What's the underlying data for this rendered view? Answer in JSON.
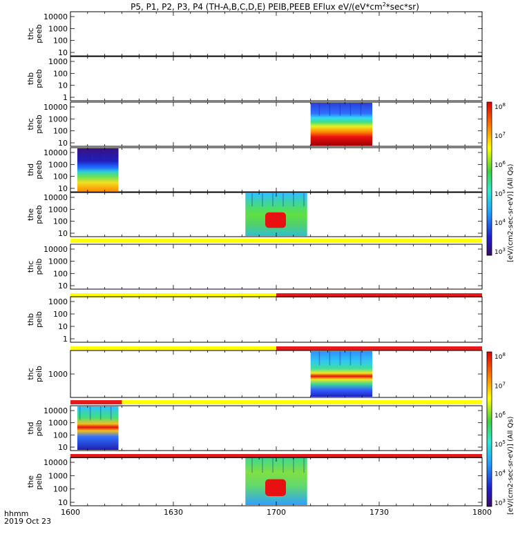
{
  "title": "P5, P1, P2, P3, P4 (TH-A,B,C,D,E) PEIB,PEEB EFlux eV/(eV*cm^2*sec*sr)",
  "title_parts": {
    "main": "P5, P1, P2, P3, P4 (TH-A,B,C,D,E) PEIB,PEEB EFlux eV/(eV*cm",
    "sup": "2",
    "tail": "*sec*sr)"
  },
  "time_axis": {
    "label_line1": "hhmm",
    "label_line2": "2019 Oct 23",
    "ticks": [
      "1600",
      "1630",
      "1700",
      "1730",
      "1800"
    ]
  },
  "colorbar_labels": {
    "electron": "[eV/(cm2-sec-sr-eV)] (All Qs)",
    "ion": "[eV/(cm2-sec-sr-eV)] (All Qs)"
  },
  "colorbar_ticks": [
    "10",
    "10",
    "10",
    "10",
    "10",
    "10"
  ],
  "colorbar_exponents": [
    "3",
    "4",
    "5",
    "6",
    "7",
    "8"
  ],
  "colors": {
    "red": "#e41a1c",
    "yellow": "#ffff00",
    "blue": "#2020d0",
    "green": "#33cc33",
    "cyan": "#30c8ff"
  },
  "chart_data": [
    {
      "type": "heatmap",
      "probe": "thc",
      "product": "peeb",
      "ylabel": [
        "thc",
        "peeb"
      ],
      "yticks": [
        "10000",
        "1000",
        "100",
        "10"
      ],
      "data_window": null
    },
    {
      "type": "heatmap",
      "probe": "thb",
      "product": "peeb",
      "ylabel": [
        "thb",
        "peeb"
      ],
      "yticks": [
        "1000",
        "100",
        "10",
        "1"
      ],
      "data_window": null
    },
    {
      "type": "heatmap",
      "probe": "thc",
      "product": "peeb",
      "ylabel": [
        "thc",
        "peeb"
      ],
      "yticks": [
        "10000",
        "1000",
        "100",
        "10"
      ],
      "data_window": [
        "17:10",
        "17:28"
      ]
    },
    {
      "type": "heatmap",
      "probe": "thd",
      "product": "peeb",
      "ylabel": [
        "thd",
        "peeb"
      ],
      "yticks": [
        "10000",
        "1000",
        "100",
        "10"
      ],
      "data_window": [
        "16:02",
        "16:14"
      ]
    },
    {
      "type": "heatmap",
      "probe": "the",
      "product": "peeb",
      "ylabel": [
        "the",
        "peeb"
      ],
      "yticks": [
        "10000",
        "1000",
        "100",
        "10"
      ],
      "data_window": [
        "16:51",
        "17:09"
      ]
    },
    {
      "type": "heatmap",
      "probe": "thc",
      "product": "peib",
      "ylabel": [
        "thc",
        "peib"
      ],
      "yticks": [
        "10000",
        "1000",
        "100",
        "10"
      ],
      "data_window": null,
      "flag_bar": [
        {
          "from": "16:00",
          "to": "18:00",
          "color": "yellow"
        }
      ]
    },
    {
      "type": "heatmap",
      "probe": "thb",
      "product": "peib",
      "ylabel": [
        "thb",
        "peib"
      ],
      "yticks": [
        "1000",
        "100",
        "10",
        "1"
      ],
      "data_window": null,
      "flag_bar": [
        {
          "from": "16:00",
          "to": "17:00",
          "color": "yellow"
        },
        {
          "from": "17:00",
          "to": "18:00",
          "color": "red"
        }
      ]
    },
    {
      "type": "heatmap",
      "probe": "thc",
      "product": "peib",
      "ylabel": [
        "thc",
        "peib"
      ],
      "yticks": [
        "1000"
      ],
      "data_window": [
        "17:10",
        "17:28"
      ],
      "flag_bar": [
        {
          "from": "16:00",
          "to": "17:00",
          "color": "yellow"
        },
        {
          "from": "17:00",
          "to": "18:00",
          "color": "red"
        }
      ]
    },
    {
      "type": "heatmap",
      "probe": "thd",
      "product": "peib",
      "ylabel": [
        "thd",
        "peib"
      ],
      "yticks": [
        "10000",
        "1000",
        "100",
        "10"
      ],
      "data_window": [
        "16:02",
        "16:14"
      ],
      "flag_bar": [
        {
          "from": "16:00",
          "to": "16:15",
          "color": "red"
        },
        {
          "from": "16:15",
          "to": "18:00",
          "color": "yellow"
        }
      ]
    },
    {
      "type": "heatmap",
      "probe": "the",
      "product": "peib",
      "ylabel": [
        "the",
        "peib"
      ],
      "yticks": [
        "10000",
        "1000",
        "100",
        "10"
      ],
      "data_window": [
        "16:51",
        "17:09"
      ],
      "flag_bar": [
        {
          "from": "16:00",
          "to": "18:00",
          "color": "red"
        }
      ]
    }
  ]
}
